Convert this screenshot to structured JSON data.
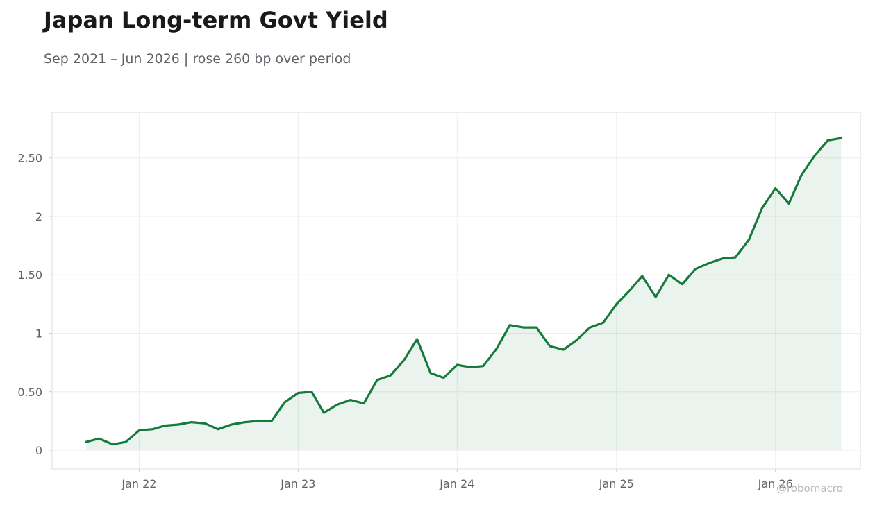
{
  "header": {
    "title": "Japan Long-term Govt Yield",
    "subtitle": "Sep 2021 – Jun 2026 | rose 260 bp over period"
  },
  "watermark": "@robomacro",
  "colors": {
    "line": "#157a3c",
    "fill": "#157a3c",
    "grid": "#eeeeee",
    "frame": "#dddddd",
    "text": "#5f6368"
  },
  "chart_data": {
    "type": "area",
    "title": "Japan Long-term Govt Yield",
    "xlabel": "",
    "ylabel": "",
    "grid": true,
    "legend": "none",
    "xlim": [
      "2021-06-15",
      "2026-07-15"
    ],
    "ylim": [
      -0.16,
      2.89
    ],
    "x_ticks": [
      {
        "date": "2022-01-01",
        "label": "Jan 22"
      },
      {
        "date": "2023-01-01",
        "label": "Jan 23"
      },
      {
        "date": "2024-01-01",
        "label": "Jan 24"
      },
      {
        "date": "2025-01-01",
        "label": "Jan 25"
      },
      {
        "date": "2026-01-01",
        "label": "Jan 26"
      }
    ],
    "y_ticks": [
      {
        "value": 0,
        "label": "0"
      },
      {
        "value": 0.5,
        "label": "0.50"
      },
      {
        "value": 1,
        "label": "1"
      },
      {
        "value": 1.5,
        "label": "1.50"
      },
      {
        "value": 2,
        "label": "2"
      },
      {
        "value": 2.5,
        "label": "2.50"
      }
    ],
    "x": [
      "2021-09",
      "2021-10",
      "2021-11",
      "2021-12",
      "2022-01",
      "2022-02",
      "2022-03",
      "2022-04",
      "2022-05",
      "2022-06",
      "2022-07",
      "2022-08",
      "2022-09",
      "2022-10",
      "2022-11",
      "2022-12",
      "2023-01",
      "2023-02",
      "2023-03",
      "2023-04",
      "2023-05",
      "2023-06",
      "2023-07",
      "2023-08",
      "2023-09",
      "2023-10",
      "2023-11",
      "2023-12",
      "2024-01",
      "2024-02",
      "2024-03",
      "2024-04",
      "2024-05",
      "2024-06",
      "2024-07",
      "2024-08",
      "2024-09",
      "2024-10",
      "2024-11",
      "2024-12",
      "2025-01",
      "2025-02",
      "2025-03",
      "2025-04",
      "2025-05",
      "2025-06",
      "2025-07",
      "2025-08",
      "2025-09",
      "2025-10",
      "2025-11",
      "2025-12",
      "2026-01",
      "2026-02",
      "2026-03",
      "2026-04",
      "2026-05",
      "2026-06"
    ],
    "series": [
      {
        "name": "",
        "values": [
          0.07,
          0.1,
          0.05,
          0.07,
          0.17,
          0.18,
          0.21,
          0.22,
          0.24,
          0.23,
          0.18,
          0.22,
          0.24,
          0.25,
          0.25,
          0.41,
          0.49,
          0.5,
          0.32,
          0.39,
          0.43,
          0.4,
          0.6,
          0.64,
          0.77,
          0.95,
          0.66,
          0.62,
          0.73,
          0.71,
          0.72,
          0.87,
          1.07,
          1.05,
          1.05,
          0.89,
          0.86,
          0.94,
          1.05,
          1.09,
          1.25,
          1.37,
          1.49,
          1.31,
          1.5,
          1.42,
          1.55,
          1.6,
          1.64,
          1.65,
          1.8,
          2.07,
          2.24,
          2.11,
          2.35,
          2.52,
          2.65,
          2.67
        ]
      }
    ]
  }
}
